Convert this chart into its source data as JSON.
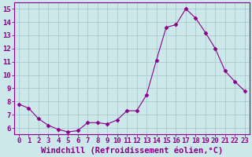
{
  "hours": [
    0,
    1,
    2,
    3,
    4,
    5,
    6,
    7,
    8,
    9,
    10,
    11,
    12,
    13,
    14,
    15,
    16,
    17,
    18,
    19,
    20,
    21,
    22,
    23
  ],
  "values": [
    7.8,
    7.5,
    6.7,
    6.2,
    5.9,
    5.7,
    5.8,
    6.4,
    6.4,
    6.3,
    6.6,
    7.3,
    7.3,
    8.5,
    11.1,
    13.6,
    13.8,
    15.0,
    14.3,
    13.2,
    12.0,
    10.3,
    9.5,
    8.8
  ],
  "line_color": "#880088",
  "marker": "D",
  "marker_size": 2.5,
  "bg_color": "#cce8ea",
  "grid_color": "#aacccc",
  "xlabel": "Windchill (Refroidissement éolien,°C)",
  "ylabel_ticks": [
    6,
    7,
    8,
    9,
    10,
    11,
    12,
    13,
    14,
    15
  ],
  "ylim": [
    5.5,
    15.5
  ],
  "xlim": [
    -0.5,
    23.5
  ],
  "tick_fontsize": 6.5,
  "label_fontsize": 7.5,
  "label_color": "#880088",
  "tick_color": "#880088"
}
